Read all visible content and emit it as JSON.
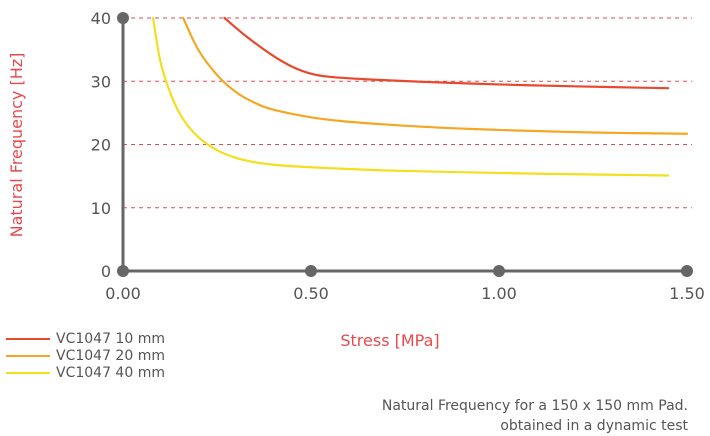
{
  "chart_data": {
    "type": "line",
    "xlabel": "Stress [MPa]",
    "ylabel": "Natural Frequency [Hz]",
    "xlim": [
      0,
      1.5
    ],
    "ylim": [
      0,
      40
    ],
    "x_ticks": [
      "0.00",
      "0.50",
      "1.00",
      "1.50"
    ],
    "y_ticks": [
      "0",
      "10",
      "20",
      "30",
      "40"
    ],
    "grid": "dashed horizontal",
    "legend_position": "bottom-left",
    "series": [
      {
        "name": "VC1047 10 mm",
        "color": "#e8492d",
        "x": [
          0.27,
          0.33,
          0.4,
          0.45,
          0.5,
          0.55,
          0.65,
          0.8,
          1.0,
          1.2,
          1.45
        ],
        "y": [
          40,
          37,
          34,
          32.3,
          31.2,
          30.7,
          30.3,
          29.9,
          29.5,
          29.2,
          28.9
        ]
      },
      {
        "name": "VC1047 20 mm",
        "color": "#f5a623",
        "x": [
          0.16,
          0.2,
          0.25,
          0.3,
          0.35,
          0.4,
          0.5,
          0.6,
          0.8,
          1.0,
          1.25,
          1.5
        ],
        "y": [
          40,
          35,
          31,
          28.3,
          26.6,
          25.5,
          24.3,
          23.6,
          22.8,
          22.3,
          21.9,
          21.7
        ]
      },
      {
        "name": "VC1047 40 mm",
        "color": "#f2df1e",
        "x": [
          0.08,
          0.1,
          0.13,
          0.16,
          0.2,
          0.25,
          0.3,
          0.35,
          0.4,
          0.5,
          0.7,
          1.0,
          1.2,
          1.45
        ],
        "y": [
          40,
          33,
          27.5,
          24,
          21.2,
          19.1,
          17.9,
          17.2,
          16.8,
          16.4,
          15.9,
          15.5,
          15.3,
          15.1
        ]
      }
    ]
  },
  "caption": {
    "line1": "Natural Frequency for a 150 x 150 mm Pad.",
    "line2": "obtained in a dynamic test"
  }
}
